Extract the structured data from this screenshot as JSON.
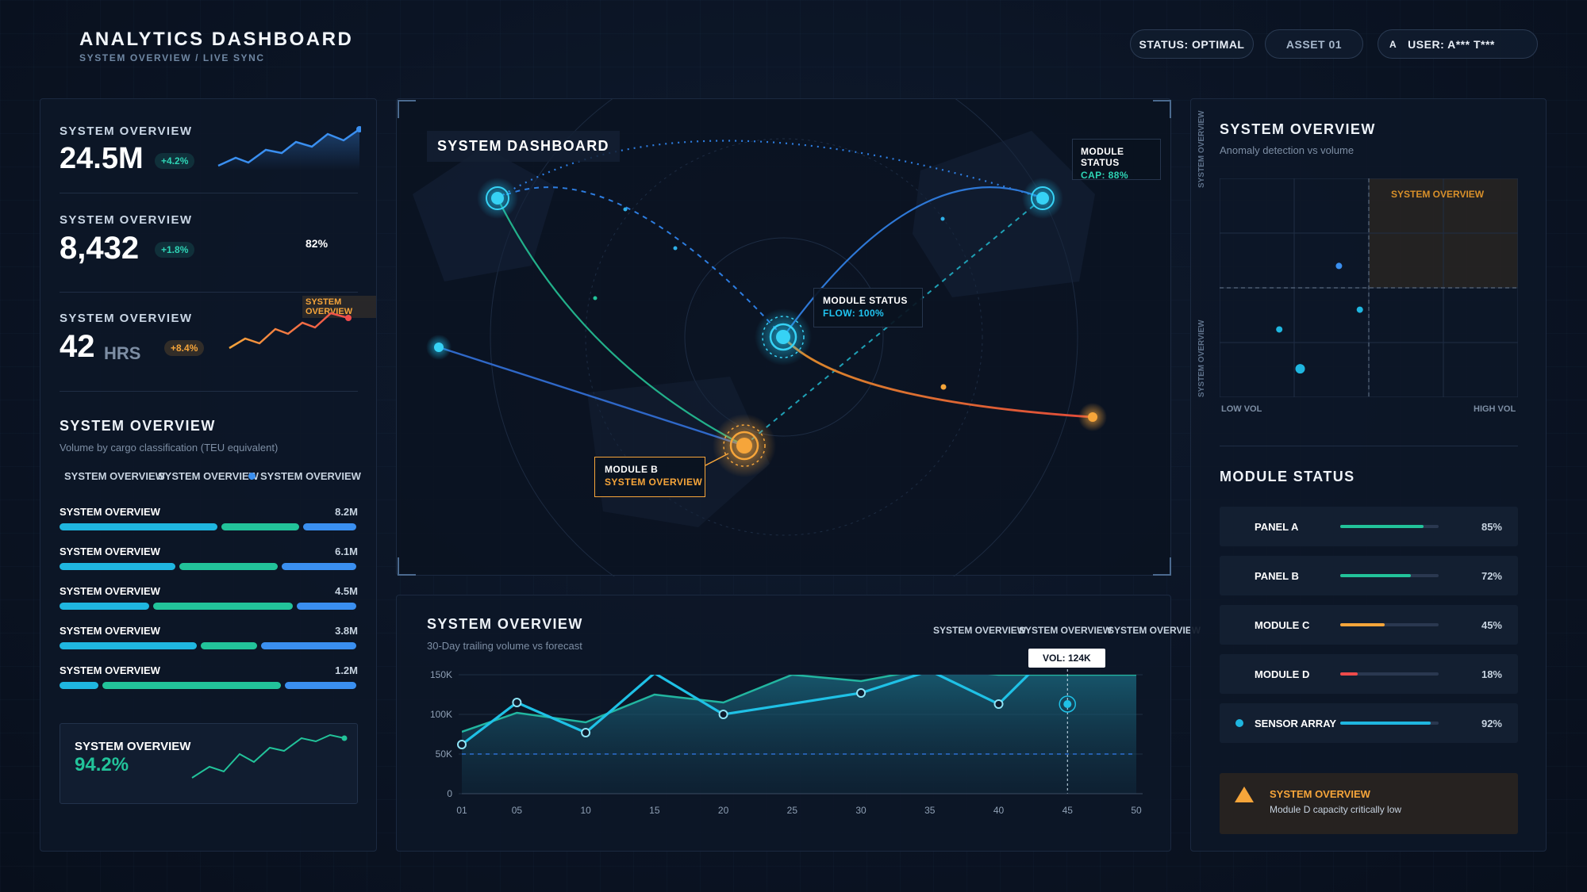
{
  "header": {
    "title": "ANALYTICS DASHBOARD",
    "subtitle": "SYSTEM OVERVIEW / LIVE SYNC",
    "status": "STATUS: OPTIMAL",
    "asset": "ASSET 01",
    "user_initial": "A",
    "user": "USER: A*** T***"
  },
  "left": {
    "kpis": [
      {
        "label": "SYSTEM OVERVIEW",
        "value": "24.5M",
        "delta": "+4.2%"
      },
      {
        "label": "SYSTEM OVERVIEW",
        "value": "8,432",
        "delta": "+1.8%",
        "extra": "82%"
      },
      {
        "label": "SYSTEM OVERVIEW",
        "value": "42",
        "unit": "HRS",
        "delta": "+8.4%",
        "chart_label": "SYSTEM OVERVIEW"
      }
    ],
    "breakdown": {
      "title": "SYSTEM OVERVIEW",
      "subtitle": "Volume by cargo classification (TEU equivalent)",
      "legend": [
        "SYSTEM OVERVIEW",
        "SYSTEM OVERVIEW",
        "SYSTEM OVERVIEW"
      ],
      "rows": [
        {
          "label": "SYSTEM OVERVIEW",
          "value": "8.2M",
          "parts": [
            0.54,
            0.27,
            0.19
          ]
        },
        {
          "label": "SYSTEM OVERVIEW",
          "value": "6.1M",
          "parts": [
            0.4,
            0.34,
            0.26
          ]
        },
        {
          "label": "SYSTEM OVERVIEW",
          "value": "4.5M",
          "parts": [
            0.31,
            0.48,
            0.21
          ]
        },
        {
          "label": "SYSTEM OVERVIEW",
          "value": "3.8M",
          "parts": [
            0.47,
            0.2,
            0.33
          ]
        },
        {
          "label": "SYSTEM OVERVIEW",
          "value": "1.2M",
          "parts": [
            0.14,
            0.61,
            0.25
          ]
        }
      ]
    },
    "footer_card": {
      "label": "SYSTEM OVERVIEW",
      "value": "94.2%"
    }
  },
  "map": {
    "title": "SYSTEM DASHBOARD",
    "tags": [
      {
        "title": "MODULE STATUS",
        "value": "CAP: 88%"
      },
      {
        "title": "MODULE STATUS",
        "value": "FLOW: 100%"
      },
      {
        "title": "MODULE B",
        "value": "SYSTEM OVERVIEW"
      }
    ]
  },
  "trend": {
    "title": "SYSTEM OVERVIEW",
    "subtitle": "30-Day trailing volume vs forecast",
    "legend": [
      "SYSTEM OVERVIEW",
      "SYSTEM OVERVIEW",
      "SYSTEM OVERVIEW"
    ],
    "tooltip": "VOL: 124K"
  },
  "right": {
    "scatter": {
      "title": "SYSTEM OVERVIEW",
      "subtitle": "Anomaly detection vs volume",
      "quadrant_label": "SYSTEM OVERVIEW",
      "y_axis_label": "SYSTEM OVERVIEW",
      "y_axis_label_2": "SYSTEM OVERVIEW",
      "x_min_label": "LOW VOL",
      "x_max_label": "HIGH VOL"
    },
    "module_status": {
      "title": "MODULE STATUS",
      "rows": [
        {
          "name": "PANEL A",
          "pct": "85%",
          "level": 0.85,
          "color": "#22c39a"
        },
        {
          "name": "PANEL B",
          "pct": "72%",
          "level": 0.72,
          "color": "#22c39a"
        },
        {
          "name": "MODULE C",
          "pct": "45%",
          "level": 0.45,
          "color": "#f6a53a"
        },
        {
          "name": "MODULE D",
          "pct": "18%",
          "level": 0.18,
          "color": "#ef4b4b"
        },
        {
          "name": "SENSOR ARRAY",
          "pct": "92%",
          "level": 0.92,
          "color": "#1fb6e0"
        }
      ]
    },
    "alert": {
      "title": "SYSTEM OVERVIEW",
      "message": "Module D capacity critically low"
    }
  },
  "chart_data": [
    {
      "type": "line",
      "x": [
        "01",
        "05",
        "10",
        "15",
        "20",
        "25",
        "30",
        "35",
        "40",
        "45",
        "50"
      ],
      "ylim": [
        0,
        150000
      ],
      "yticks": [
        "0",
        "50K",
        "100K",
        "150K"
      ],
      "series": [
        {
          "values": [
            [
              1,
              62000
            ],
            [
              5,
              115000
            ],
            [
              10,
              77000
            ],
            [
              15,
              152000
            ],
            [
              20,
              100000
            ],
            [
              30,
              127000
            ],
            [
              35,
              155000
            ],
            [
              40,
              113000
            ],
            [
              45,
              124000
            ]
          ]
        },
        {
          "values": [
            [
              1,
              78000
            ],
            [
              5,
              102000
            ],
            [
              10,
              90000
            ],
            [
              15,
              125000
            ],
            [
              20,
              115000
            ],
            [
              25,
              150000
            ],
            [
              30,
              142000
            ],
            [
              35,
              158000
            ],
            [
              40,
              150000
            ],
            [
              50,
              150000
            ]
          ]
        }
      ],
      "reference_line": 50000
    },
    {
      "type": "scatter",
      "xlabel_min": "LOW VOL",
      "xlabel_max": "HIGH VOL",
      "points": [
        [
          0.4,
          0.6
        ],
        [
          0.47,
          0.4
        ],
        [
          0.2,
          0.31
        ],
        [
          0.27,
          0.13
        ]
      ]
    }
  ]
}
